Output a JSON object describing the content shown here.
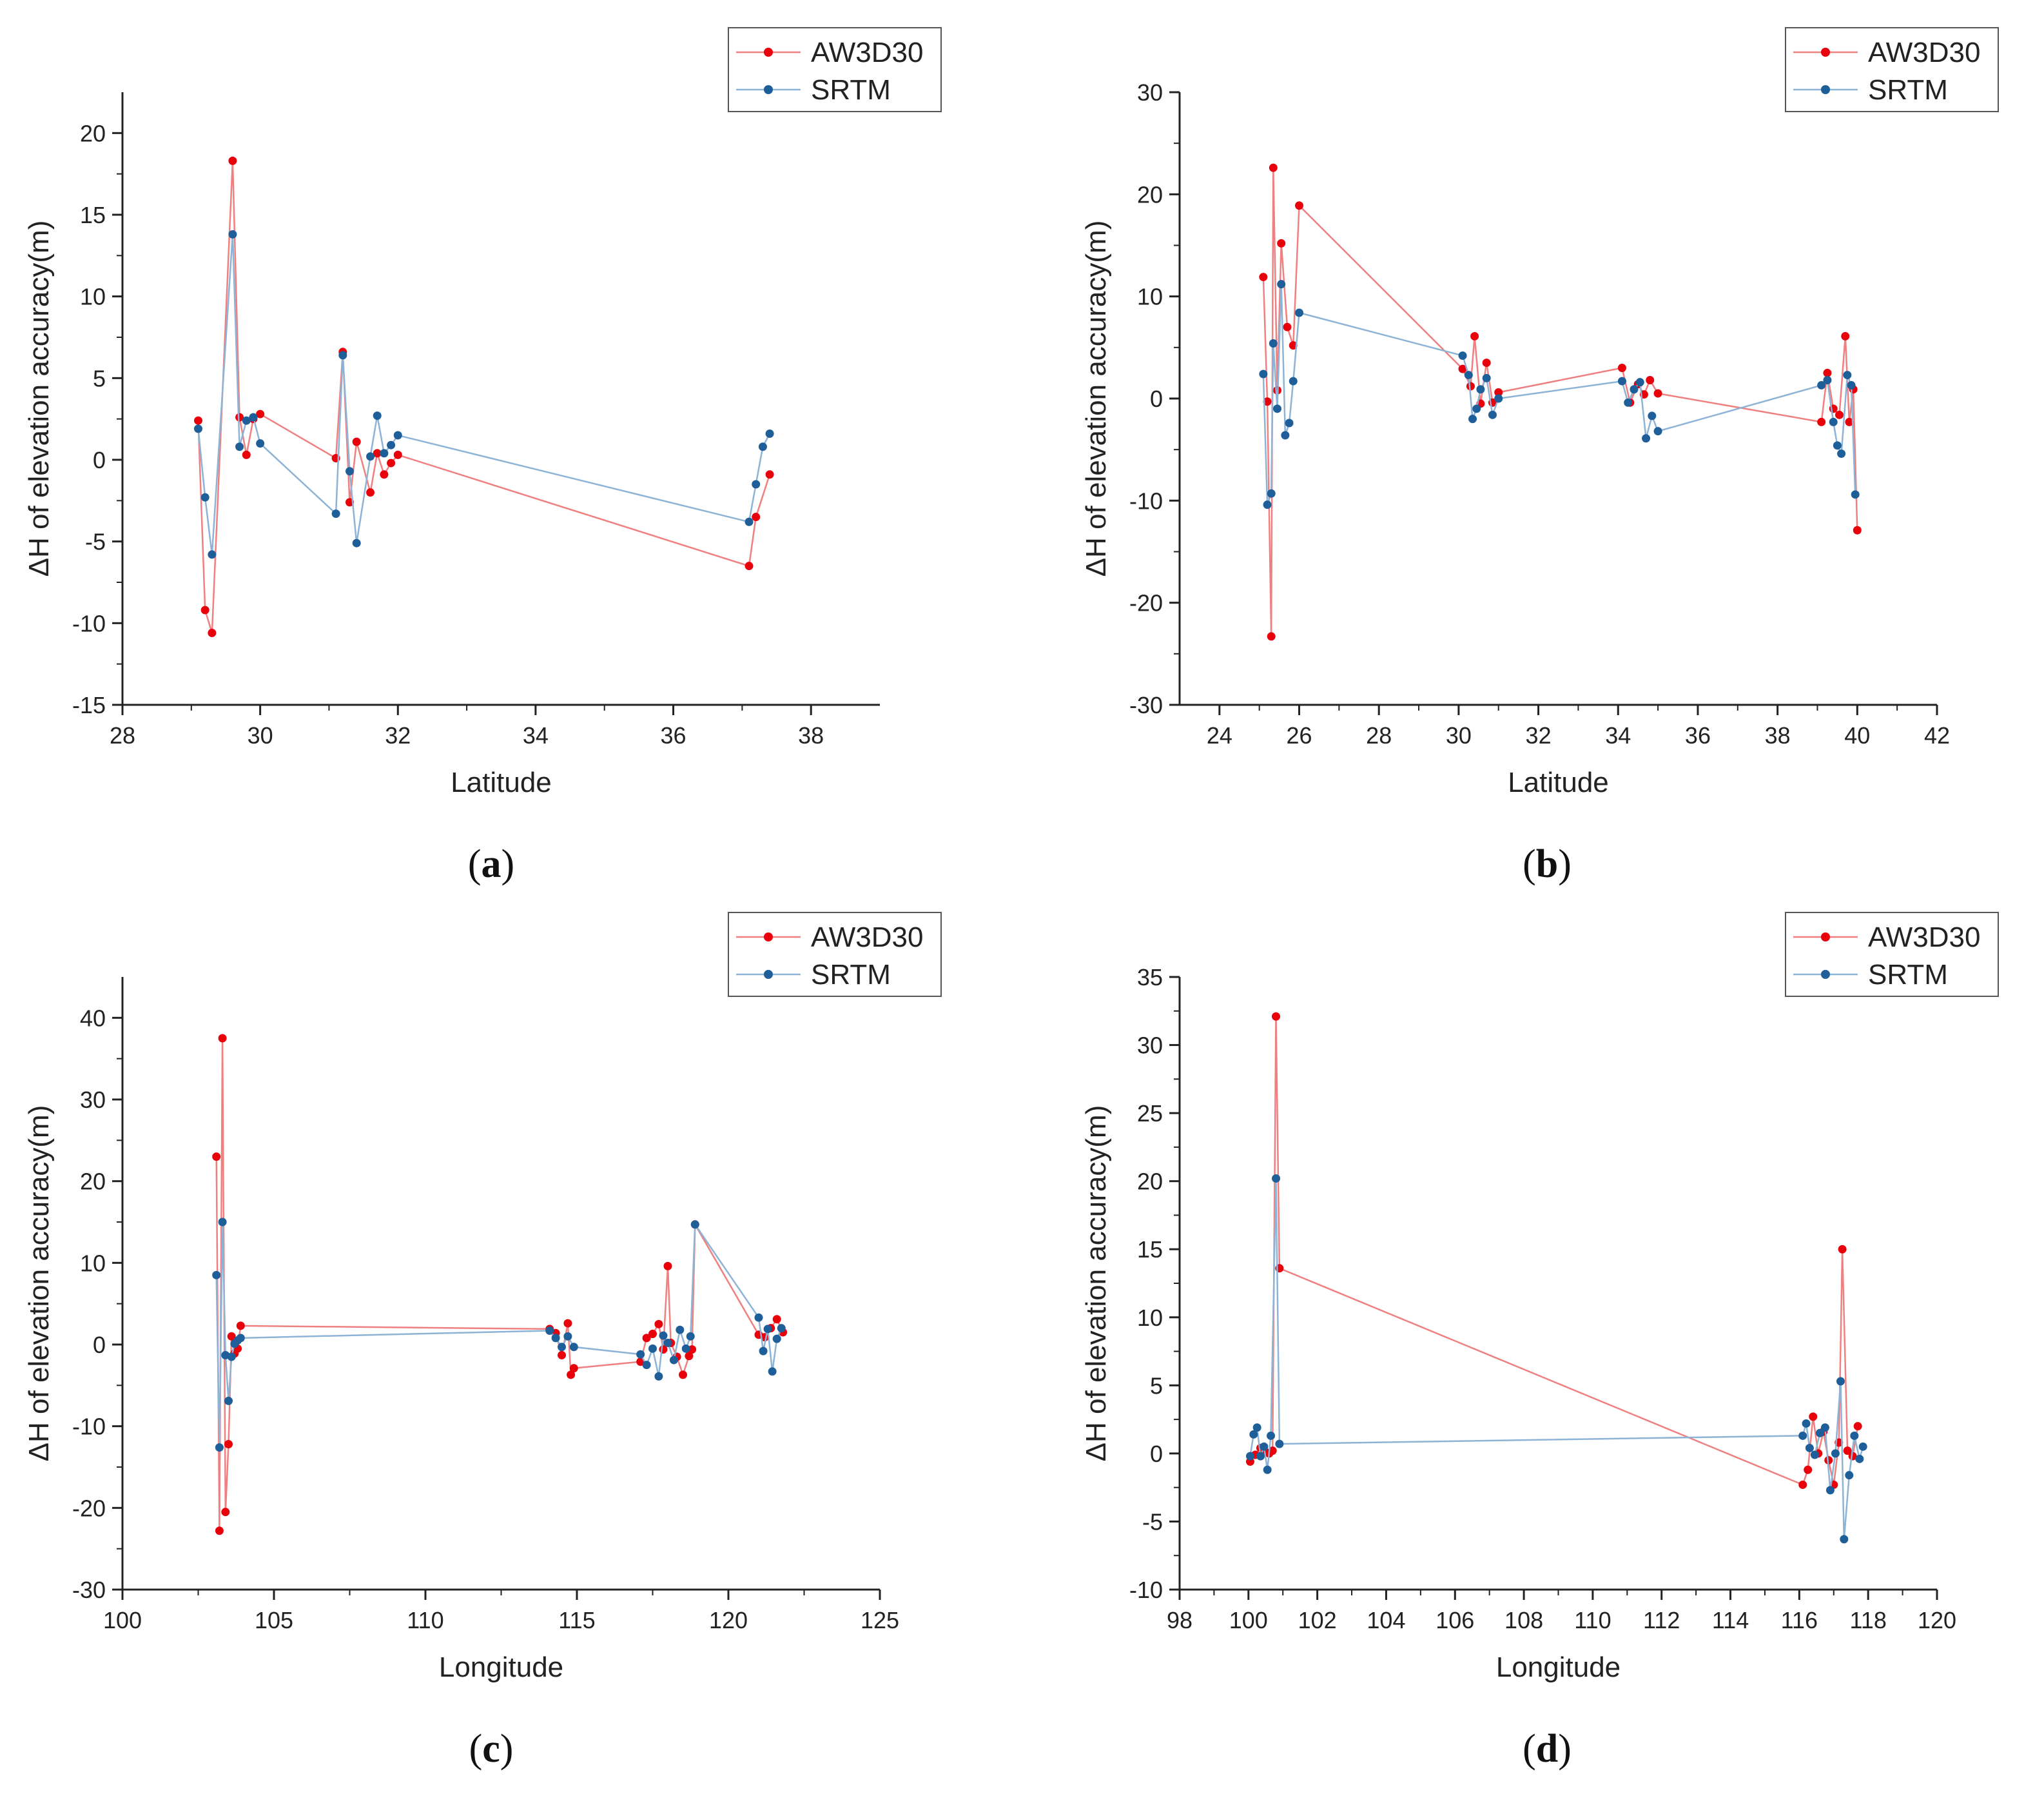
{
  "colors": {
    "aw3d30": "#e8000b",
    "aw3d30_line": "#f08080",
    "srtm": "#1f5f99",
    "srtm_line": "#8db3d6",
    "axis": "#222222"
  },
  "chart_data": [
    {
      "type": "line",
      "panel": "a",
      "caption_open": "(",
      "caption_letter": "a",
      "caption_close": ")",
      "xlabel": "Latitude",
      "ylabel": "ΔH of elevation accuracy(m)",
      "xlim": [
        28,
        39
      ],
      "ylim": [
        -15,
        22.5
      ],
      "xticks": [
        "28",
        "30",
        "32",
        "34",
        "36",
        "38"
      ],
      "yticks": [
        "-15",
        "-10",
        "-5",
        "0",
        "5",
        "10",
        "15",
        "20"
      ],
      "legend": [
        "AW3D30",
        "SRTM"
      ],
      "series": [
        {
          "name": "AW3D30",
          "x": [
            29.1,
            29.2,
            29.3,
            29.6,
            29.7,
            29.8,
            29.9,
            30.0,
            31.1,
            31.2,
            31.3,
            31.4,
            31.6,
            31.7,
            31.8,
            31.9,
            32.0,
            37.1,
            37.2,
            37.4
          ],
          "y": [
            2.4,
            -9.2,
            -10.6,
            18.3,
            2.6,
            0.3,
            2.5,
            2.8,
            0.1,
            6.6,
            -2.6,
            1.1,
            -2.0,
            0.4,
            -0.9,
            -0.2,
            0.3,
            -6.5,
            -3.5,
            -0.9
          ]
        },
        {
          "name": "SRTM",
          "x": [
            29.1,
            29.2,
            29.3,
            29.6,
            29.7,
            29.8,
            29.9,
            30.0,
            31.1,
            31.2,
            31.3,
            31.4,
            31.6,
            31.7,
            31.8,
            31.9,
            32.0,
            37.1,
            37.2,
            37.3,
            37.4
          ],
          "y": [
            1.9,
            -2.3,
            -5.8,
            13.8,
            0.8,
            2.4,
            2.6,
            1.0,
            -3.3,
            6.4,
            -0.7,
            -5.1,
            0.2,
            2.7,
            0.4,
            0.9,
            1.5,
            -3.8,
            -1.5,
            0.8,
            1.6
          ]
        }
      ]
    },
    {
      "type": "line",
      "panel": "b",
      "caption_open": "(",
      "caption_letter": "b",
      "caption_close": ")",
      "xlabel": "Latitude",
      "ylabel": "ΔH of elevation accuracy(m)",
      "xlim": [
        23,
        42
      ],
      "ylim": [
        -30,
        30
      ],
      "xticks": [
        "24",
        "26",
        "28",
        "30",
        "32",
        "34",
        "36",
        "38",
        "40",
        "42"
      ],
      "yticks": [
        "-30",
        "-20",
        "-10",
        "0",
        "10",
        "20",
        "30"
      ],
      "legend": [
        "AW3D30",
        "SRTM"
      ],
      "series": [
        {
          "name": "AW3D30",
          "x": [
            25.1,
            25.2,
            25.3,
            25.35,
            25.45,
            25.55,
            25.7,
            25.85,
            26.0,
            30.1,
            30.3,
            30.4,
            30.55,
            30.7,
            30.85,
            31.0,
            34.1,
            34.3,
            34.5,
            34.65,
            34.8,
            35.0,
            39.1,
            39.25,
            39.4,
            39.55,
            39.7,
            39.8,
            39.9,
            40.0
          ],
          "y": [
            11.9,
            -0.3,
            -23.3,
            22.6,
            0.8,
            15.2,
            7.0,
            5.2,
            18.9,
            2.9,
            1.2,
            6.1,
            -0.5,
            3.5,
            -0.4,
            0.6,
            3.0,
            -0.4,
            1.4,
            0.4,
            1.8,
            0.5,
            -2.3,
            2.5,
            -1.0,
            -1.6,
            6.1,
            -2.3,
            0.9,
            -12.9
          ]
        },
        {
          "name": "SRTM",
          "x": [
            25.1,
            25.2,
            25.3,
            25.35,
            25.45,
            25.55,
            25.65,
            25.75,
            25.85,
            26.0,
            30.1,
            30.25,
            30.35,
            30.45,
            30.55,
            30.7,
            30.85,
            31.0,
            34.1,
            34.25,
            34.4,
            34.55,
            34.7,
            34.85,
            35.0,
            39.1,
            39.25,
            39.4,
            39.5,
            39.6,
            39.75,
            39.85,
            39.95
          ],
          "y": [
            2.4,
            -10.4,
            -9.3,
            5.4,
            -1.0,
            11.2,
            -3.6,
            -2.4,
            1.7,
            8.4,
            4.2,
            2.3,
            -2.0,
            -1.0,
            0.9,
            2.0,
            -1.6,
            0.0,
            1.7,
            -0.4,
            0.9,
            1.6,
            -3.9,
            -1.7,
            -3.2,
            1.3,
            1.8,
            -2.3,
            -4.6,
            -5.4,
            2.3,
            1.3,
            -9.4
          ]
        }
      ]
    },
    {
      "type": "line",
      "panel": "c",
      "caption_open": "(",
      "caption_letter": "c",
      "caption_close": ")",
      "xlabel": "Longitude",
      "ylabel": "ΔH of elevation accuracy(m)",
      "xlim": [
        100,
        125
      ],
      "ylim": [
        -30,
        45
      ],
      "xticks": [
        "100",
        "105",
        "110",
        "115",
        "120",
        "125"
      ],
      "yticks": [
        "-30",
        "-20",
        "-10",
        "0",
        "10",
        "20",
        "30",
        "40"
      ],
      "legend": [
        "AW3D30",
        "SRTM"
      ],
      "series": [
        {
          "name": "AW3D30",
          "x": [
            103.1,
            103.2,
            103.3,
            103.4,
            103.5,
            103.6,
            103.7,
            103.8,
            103.9,
            114.1,
            114.3,
            114.5,
            114.7,
            114.8,
            114.9,
            117.1,
            117.3,
            117.5,
            117.7,
            117.85,
            118.0,
            118.1,
            118.3,
            118.5,
            118.7,
            118.8,
            118.9,
            121.0,
            121.2,
            121.4,
            121.6,
            121.8
          ],
          "y": [
            23.0,
            -22.8,
            37.5,
            -20.5,
            -12.2,
            1.0,
            -1.1,
            -0.5,
            2.3,
            1.9,
            1.4,
            -1.3,
            2.6,
            -3.7,
            -2.9,
            -2.1,
            0.8,
            1.3,
            2.5,
            -0.6,
            9.6,
            0.2,
            -1.5,
            -3.7,
            -1.4,
            -0.6,
            14.7,
            1.2,
            0.9,
            2.0,
            3.1,
            1.5
          ]
        },
        {
          "name": "SRTM",
          "x": [
            103.1,
            103.2,
            103.3,
            103.4,
            103.5,
            103.6,
            103.7,
            103.8,
            103.9,
            114.1,
            114.3,
            114.5,
            114.7,
            114.9,
            117.1,
            117.3,
            117.5,
            117.7,
            117.85,
            118.0,
            118.2,
            118.4,
            118.6,
            118.75,
            118.9,
            121.0,
            121.15,
            121.3,
            121.45,
            121.6,
            121.75
          ],
          "y": [
            8.5,
            -12.6,
            15.0,
            -1.3,
            -6.9,
            -1.5,
            0.1,
            0.5,
            0.8,
            1.7,
            0.8,
            -0.3,
            1.0,
            -0.3,
            -1.2,
            -2.5,
            -0.5,
            -3.9,
            1.1,
            0.2,
            -1.9,
            1.8,
            -0.5,
            1.0,
            14.7,
            3.3,
            -0.8,
            1.9,
            -3.3,
            0.7,
            2.0
          ]
        }
      ]
    },
    {
      "type": "line",
      "panel": "d",
      "caption_open": "(",
      "caption_letter": "d",
      "caption_close": ")",
      "xlabel": "Longitude",
      "ylabel": "ΔH of elevation accuracy(m)",
      "xlim": [
        98,
        120
      ],
      "ylim": [
        -10,
        35
      ],
      "xticks": [
        "98",
        "100",
        "102",
        "104",
        "106",
        "108",
        "110",
        "112",
        "114",
        "116",
        "118",
        "120"
      ],
      "yticks": [
        "-10",
        "-5",
        "0",
        "5",
        "10",
        "15",
        "20",
        "25",
        "30",
        "35"
      ],
      "legend": [
        "AW3D30",
        "SRTM"
      ],
      "series": [
        {
          "name": "AW3D30",
          "x": [
            100.05,
            100.2,
            100.35,
            100.5,
            100.6,
            100.7,
            100.8,
            100.9,
            116.1,
            116.25,
            116.4,
            116.55,
            116.7,
            116.85,
            117.0,
            117.15,
            117.25,
            117.4,
            117.55,
            117.7
          ],
          "y": [
            -0.6,
            -0.1,
            0.4,
            0.1,
            0.0,
            0.2,
            32.1,
            13.6,
            -2.3,
            -1.2,
            2.7,
            0.0,
            1.6,
            -0.5,
            -2.3,
            0.8,
            15.0,
            0.2,
            -0.2,
            2.0
          ]
        },
        {
          "name": "SRTM",
          "x": [
            100.05,
            100.15,
            100.25,
            100.35,
            100.45,
            100.55,
            100.65,
            100.8,
            100.9,
            116.1,
            116.2,
            116.3,
            116.45,
            116.6,
            116.75,
            116.9,
            117.05,
            117.2,
            117.3,
            117.45,
            117.6,
            117.75,
            117.85
          ],
          "y": [
            -0.2,
            1.4,
            1.9,
            -0.2,
            0.5,
            -1.2,
            1.3,
            20.2,
            0.7,
            1.3,
            2.2,
            0.4,
            -0.1,
            1.5,
            1.9,
            -2.7,
            0.0,
            5.3,
            -6.3,
            -1.6,
            1.3,
            -0.4,
            0.5
          ]
        }
      ]
    }
  ]
}
